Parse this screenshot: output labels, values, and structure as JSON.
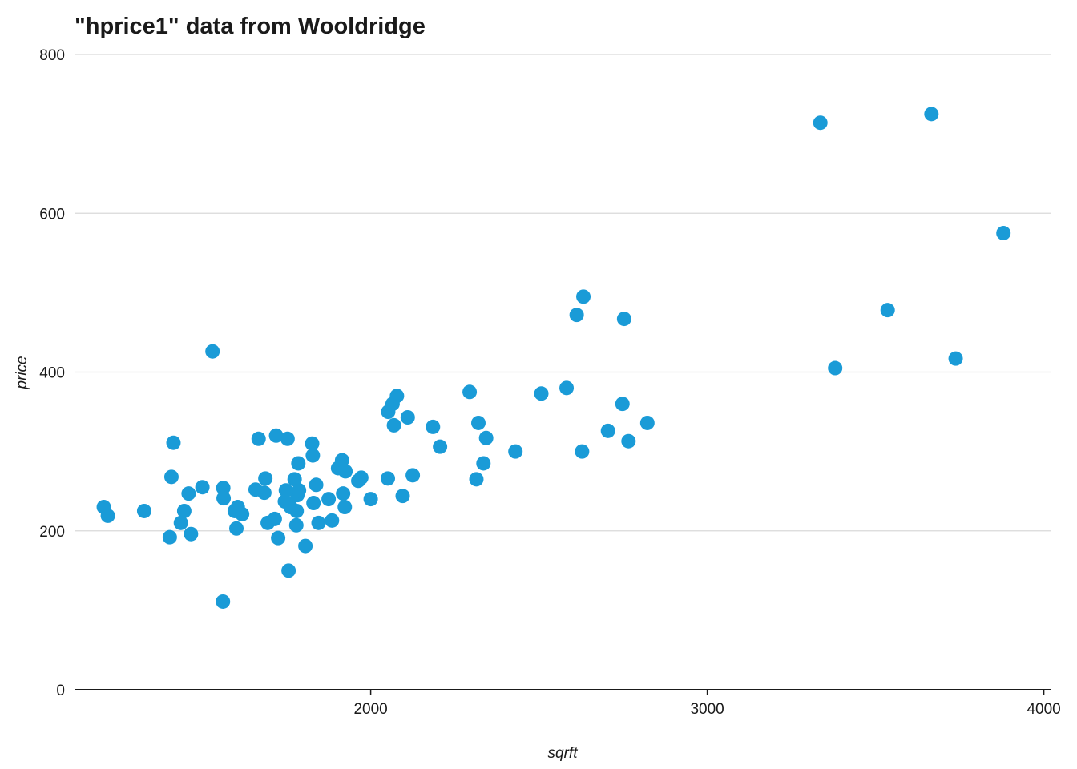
{
  "chart_data": {
    "type": "scatter",
    "title": "\"hprice1\" data from Wooldridge",
    "xlabel": "sqrft",
    "ylabel": "price",
    "xlim": [
      1120,
      4020
    ],
    "ylim": [
      0,
      800
    ],
    "x_ticks": [
      2000,
      3000,
      4000
    ],
    "y_ticks": [
      0,
      200,
      400,
      600,
      800
    ],
    "grid": "horizontal",
    "legend": "none",
    "point_color": "#1a9bd7",
    "points": [
      [
        1207,
        230
      ],
      [
        1219,
        219
      ],
      [
        1327,
        225
      ],
      [
        1403,
        192
      ],
      [
        1408,
        268
      ],
      [
        1414,
        311
      ],
      [
        1436,
        210
      ],
      [
        1446,
        225
      ],
      [
        1459,
        247
      ],
      [
        1466,
        196
      ],
      [
        1500,
        255
      ],
      [
        1530,
        426
      ],
      [
        1561,
        111
      ],
      [
        1562,
        254
      ],
      [
        1563,
        241
      ],
      [
        1596,
        225
      ],
      [
        1601,
        203
      ],
      [
        1605,
        230
      ],
      [
        1618,
        221
      ],
      [
        1658,
        252
      ],
      [
        1667,
        316
      ],
      [
        1684,
        248
      ],
      [
        1687,
        266
      ],
      [
        1694,
        210
      ],
      [
        1715,
        215
      ],
      [
        1719,
        320
      ],
      [
        1725,
        191
      ],
      [
        1745,
        237
      ],
      [
        1748,
        251
      ],
      [
        1753,
        316
      ],
      [
        1756,
        150
      ],
      [
        1762,
        230
      ],
      [
        1774,
        265
      ],
      [
        1779,
        207
      ],
      [
        1780,
        225
      ],
      [
        1782,
        245
      ],
      [
        1785,
        285
      ],
      [
        1787,
        251
      ],
      [
        1806,
        181
      ],
      [
        1826,
        310
      ],
      [
        1828,
        295
      ],
      [
        1830,
        235
      ],
      [
        1838,
        258
      ],
      [
        1845,
        210
      ],
      [
        1875,
        240
      ],
      [
        1885,
        213
      ],
      [
        1903,
        279
      ],
      [
        1915,
        289
      ],
      [
        1918,
        247
      ],
      [
        1923,
        230
      ],
      [
        1925,
        275
      ],
      [
        1963,
        263
      ],
      [
        1972,
        267
      ],
      [
        2000,
        240
      ],
      [
        2051,
        266
      ],
      [
        2052,
        350
      ],
      [
        2065,
        360
      ],
      [
        2069,
        333
      ],
      [
        2078,
        370
      ],
      [
        2095,
        244
      ],
      [
        2110,
        343
      ],
      [
        2125,
        270
      ],
      [
        2185,
        331
      ],
      [
        2206,
        306
      ],
      [
        2294,
        375
      ],
      [
        2314,
        265
      ],
      [
        2320,
        336
      ],
      [
        2335,
        285
      ],
      [
        2343,
        317
      ],
      [
        2430,
        300
      ],
      [
        2507,
        373
      ],
      [
        2582,
        380
      ],
      [
        2612,
        472
      ],
      [
        2628,
        300
      ],
      [
        2632,
        495
      ],
      [
        2705,
        326
      ],
      [
        2748,
        360
      ],
      [
        2753,
        467
      ],
      [
        2766,
        313
      ],
      [
        2822,
        336
      ],
      [
        3336,
        714
      ],
      [
        3380,
        405
      ],
      [
        3536,
        478
      ],
      [
        3666,
        725
      ],
      [
        3738,
        417
      ],
      [
        3880,
        575
      ]
    ]
  }
}
